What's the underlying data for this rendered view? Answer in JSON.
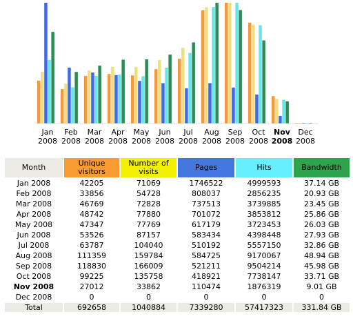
{
  "chart_data": {
    "type": "bar",
    "categories": [
      "Jan 2008",
      "Feb 2008",
      "Mar 2008",
      "Apr 2008",
      "May 2008",
      "Jun 2008",
      "Jul 2008",
      "Aug 2008",
      "Sep 2008",
      "Oct 2008",
      "Nov 2008",
      "Dec 2008"
    ],
    "month_labels": [
      "Jan",
      "Feb",
      "Mar",
      "Apr",
      "May",
      "Jun",
      "Jul",
      "Aug",
      "Sep",
      "Oct",
      "Nov",
      "Dec"
    ],
    "year_label": "2008",
    "highlight_index": 10,
    "series": [
      {
        "name": "Unique visitors",
        "color": "#f49a3b",
        "values": [
          42205,
          33856,
          46769,
          48742,
          47347,
          53526,
          63787,
          111359,
          118830,
          99225,
          27012,
          0
        ]
      },
      {
        "name": "Number of visits",
        "color": "#f1e07a",
        "values": [
          71069,
          54728,
          72828,
          77880,
          77769,
          87157,
          104040,
          159784,
          166009,
          135758,
          33862,
          0
        ]
      },
      {
        "name": "Pages",
        "color": "#4169e1",
        "values": [
          1746522,
          808037,
          737513,
          701072,
          617179,
          583434,
          510192,
          584725,
          521211,
          418921,
          110474,
          0
        ]
      },
      {
        "name": "Hits",
        "color": "#66e8e8",
        "values": [
          4999593,
          2856235,
          3739885,
          3853812,
          3723453,
          4398448,
          5557150,
          9170067,
          9504214,
          7738147,
          1876319,
          0
        ]
      },
      {
        "name": "Bandwidth",
        "color": "#2e8b57",
        "values": [
          37.14,
          20.93,
          23.45,
          25.86,
          26.03,
          27.93,
          32.86,
          48.94,
          45.98,
          33.71,
          9.01,
          0
        ]
      }
    ]
  },
  "table": {
    "headers": {
      "month": "Month",
      "unique": "Unique visitors",
      "visits": "Number of visits",
      "pages": "Pages",
      "hits": "Hits",
      "bandwidth": "Bandwidth"
    },
    "header_colors": {
      "month": "#eceae4",
      "unique": "#f89b31",
      "visits": "#f2f200",
      "pages": "#4477dd",
      "hits": "#66f0ff",
      "bandwidth": "#2ea44f"
    },
    "rows": [
      {
        "month": "Jan 2008",
        "unique": "42205",
        "visits": "71069",
        "pages": "1746522",
        "hits": "4999593",
        "bandwidth": "37.14 GB"
      },
      {
        "month": "Feb 2008",
        "unique": "33856",
        "visits": "54728",
        "pages": "808037",
        "hits": "2856235",
        "bandwidth": "20.93 GB"
      },
      {
        "month": "Mar 2008",
        "unique": "46769",
        "visits": "72828",
        "pages": "737513",
        "hits": "3739885",
        "bandwidth": "23.45 GB"
      },
      {
        "month": "Apr 2008",
        "unique": "48742",
        "visits": "77880",
        "pages": "701072",
        "hits": "3853812",
        "bandwidth": "25.86 GB"
      },
      {
        "month": "May 2008",
        "unique": "47347",
        "visits": "77769",
        "pages": "617179",
        "hits": "3723453",
        "bandwidth": "26.03 GB"
      },
      {
        "month": "Jun 2008",
        "unique": "53526",
        "visits": "87157",
        "pages": "583434",
        "hits": "4398448",
        "bandwidth": "27.93 GB"
      },
      {
        "month": "Jul 2008",
        "unique": "63787",
        "visits": "104040",
        "pages": "510192",
        "hits": "5557150",
        "bandwidth": "32.86 GB"
      },
      {
        "month": "Aug 2008",
        "unique": "111359",
        "visits": "159784",
        "pages": "584725",
        "hits": "9170067",
        "bandwidth": "48.94 GB"
      },
      {
        "month": "Sep 2008",
        "unique": "118830",
        "visits": "166009",
        "pages": "521211",
        "hits": "9504214",
        "bandwidth": "45.98 GB"
      },
      {
        "month": "Oct 2008",
        "unique": "99225",
        "visits": "135758",
        "pages": "418921",
        "hits": "7738147",
        "bandwidth": "33.71 GB"
      },
      {
        "month": "Nov 2008",
        "unique": "27012",
        "visits": "33862",
        "pages": "110474",
        "hits": "1876319",
        "bandwidth": "9.01 GB"
      },
      {
        "month": "Dec 2008",
        "unique": "0",
        "visits": "0",
        "pages": "0",
        "hits": "0",
        "bandwidth": "0"
      }
    ],
    "total": {
      "month": "Total",
      "unique": "692658",
      "visits": "1040884",
      "pages": "7339280",
      "hits": "57417323",
      "bandwidth": "331.84 GB"
    }
  }
}
